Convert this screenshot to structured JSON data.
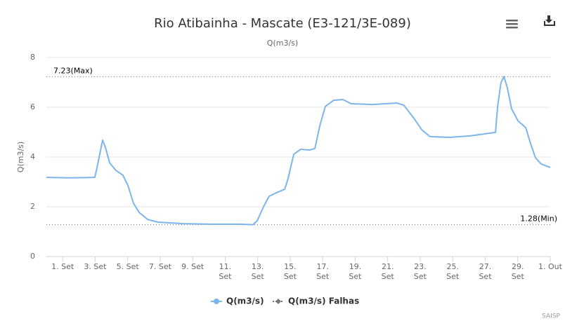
{
  "chart_data": {
    "type": "line",
    "title": "Rio Atibainha - Mascate (E3-121/3E-089)",
    "subtitle": "Q(m3/s)",
    "y_label": "Q(m3/s)",
    "credit": "SAISP",
    "x": [
      0,
      1.47,
      2.98,
      3.11,
      3.46,
      3.63,
      3.89,
      4.28,
      4.71,
      5.02,
      5.36,
      5.71,
      6.23,
      6.87,
      8.39,
      10.12,
      11.85,
      12.71,
      12.97,
      13.36,
      13.7,
      14.14,
      14.66,
      14.87,
      15.22,
      15.65,
      16.17,
      16.52,
      16.82,
      17.16,
      17.68,
      18.24,
      18.76,
      20.06,
      21.57,
      22.0,
      22.65,
      23.09,
      23.6,
      24.82,
      26.11,
      27.63,
      27.76,
      27.97,
      28.15,
      28.36,
      28.62,
      29.01,
      29.49,
      29.79,
      30.09,
      30.44,
      31.0
    ],
    "series": [
      {
        "name": "Q(m3/s)",
        "color": "#7cb5ec",
        "values": [
          3.18,
          3.16,
          3.18,
          3.55,
          4.68,
          4.39,
          3.77,
          3.46,
          3.27,
          2.85,
          2.14,
          1.77,
          1.49,
          1.38,
          1.32,
          1.3,
          1.3,
          1.28,
          1.44,
          2.0,
          2.42,
          2.56,
          2.7,
          3.13,
          4.11,
          4.31,
          4.28,
          4.34,
          5.24,
          6.03,
          6.28,
          6.31,
          6.14,
          6.11,
          6.17,
          6.08,
          5.52,
          5.1,
          4.82,
          4.79,
          4.85,
          4.99,
          6.03,
          6.99,
          7.23,
          6.79,
          5.94,
          5.46,
          5.18,
          4.54,
          3.97,
          3.72,
          3.58
        ]
      },
      {
        "name": "Q(m3/s) Falhas",
        "color": "#777777",
        "values": [
          null,
          null,
          null,
          null,
          null,
          null,
          null,
          null,
          null,
          null,
          null,
          null,
          null,
          null,
          null,
          null,
          null,
          null,
          null,
          null,
          null,
          null,
          null,
          null,
          null,
          null,
          null,
          null,
          null,
          null,
          null,
          null,
          null,
          null,
          null,
          null,
          null,
          null,
          null,
          null,
          null,
          null,
          null,
          null,
          null,
          null,
          null,
          null,
          null,
          null,
          null,
          null,
          null
        ]
      }
    ],
    "xlim": [
      0,
      31
    ],
    "xticks": [
      {
        "value": 1,
        "label": "1. Set"
      },
      {
        "value": 3,
        "label": "3. Set"
      },
      {
        "value": 5,
        "label": "5. Set"
      },
      {
        "value": 7,
        "label": "7. Set"
      },
      {
        "value": 9,
        "label": "9. Set"
      },
      {
        "value": 11,
        "label": "11. Set"
      },
      {
        "value": 13,
        "label": "13. Set"
      },
      {
        "value": 15,
        "label": "15. Set"
      },
      {
        "value": 17,
        "label": "17. Set"
      },
      {
        "value": 19,
        "label": "19. Set"
      },
      {
        "value": 21,
        "label": "21. Set"
      },
      {
        "value": 23,
        "label": "23. Set"
      },
      {
        "value": 25,
        "label": "25. Set"
      },
      {
        "value": 27,
        "label": "27. Set"
      },
      {
        "value": 29,
        "label": "29. Set"
      },
      {
        "value": 31,
        "label": "1. Out"
      }
    ],
    "ylim": [
      0,
      8
    ],
    "yticks": [
      0,
      2,
      4,
      6,
      8
    ],
    "grid": true,
    "plot_lines": [
      {
        "value": 7.23,
        "label": "7.23(Max)"
      },
      {
        "value": 1.28,
        "label": "1.28(Min)"
      }
    ]
  }
}
